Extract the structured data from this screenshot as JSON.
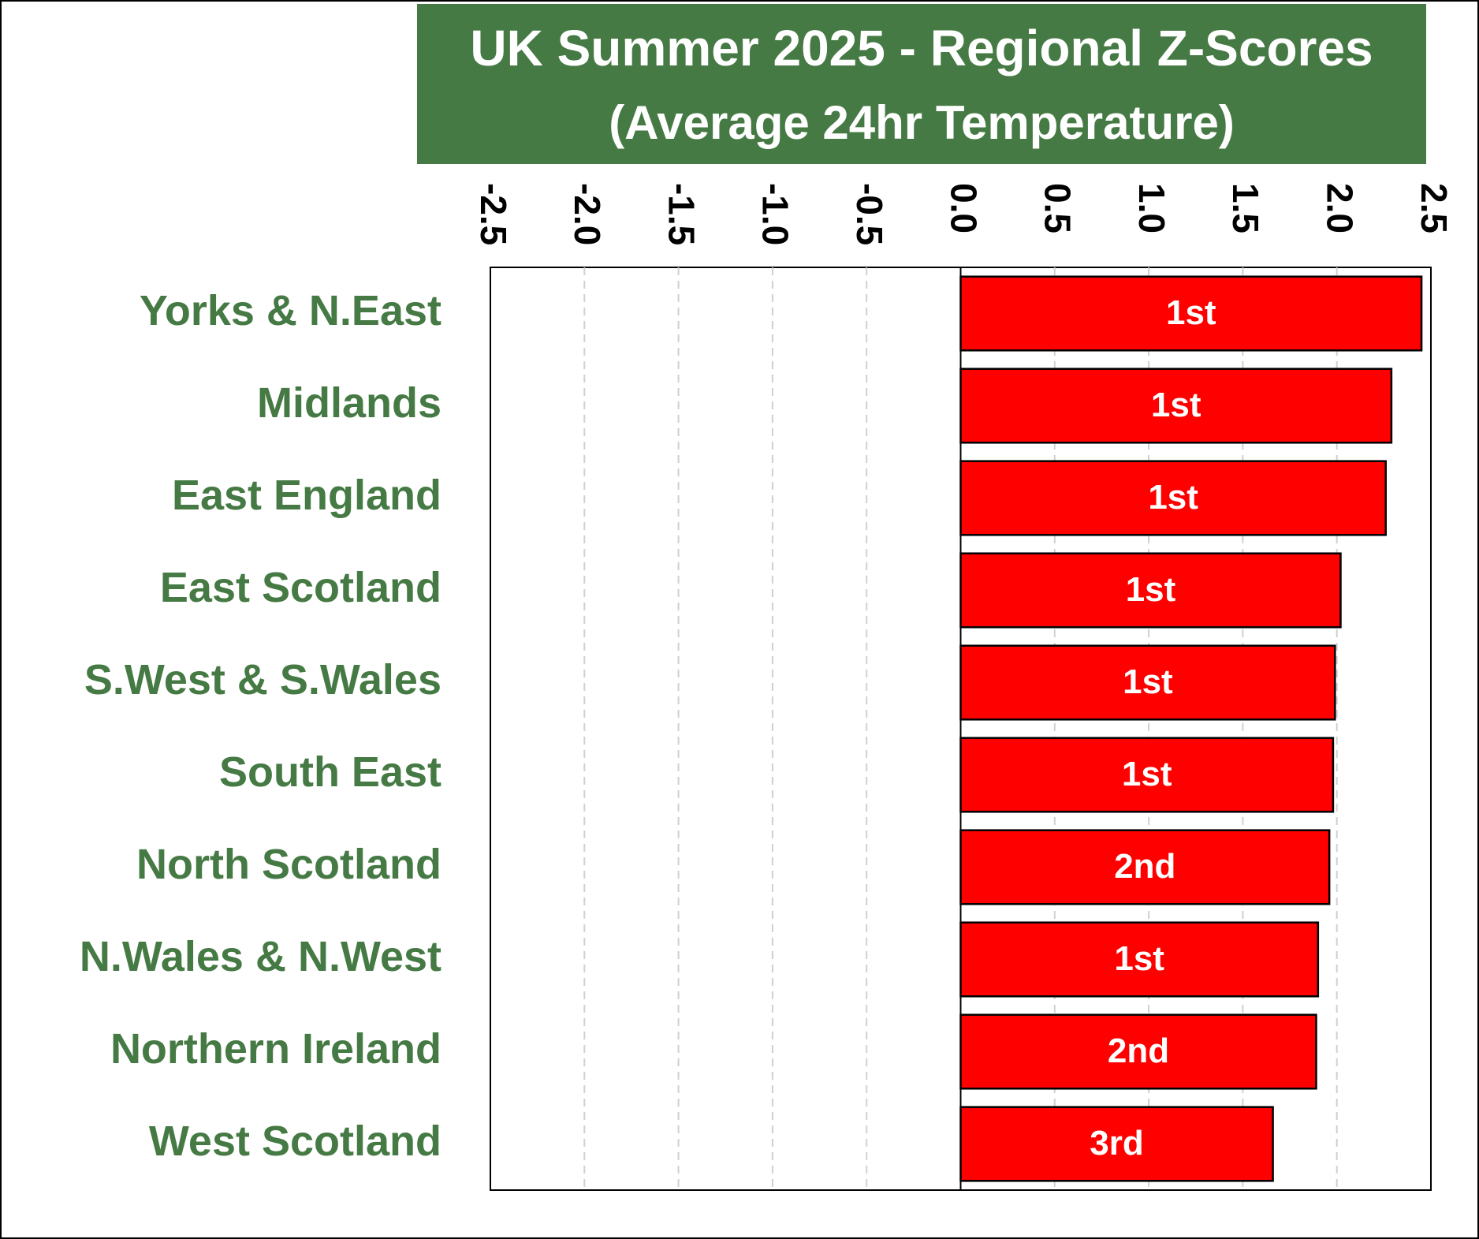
{
  "chart_data": {
    "type": "barh",
    "title": "UK Summer 2025 - Regional Z-Scores",
    "subtitle": "(Average 24hr Temperature)",
    "categories": [
      "Yorks & N.East",
      "Midlands",
      "East England",
      "East Scotland",
      "S.West & S.Wales",
      "South East",
      "North Scotland",
      "N.Wales & N.West",
      "Northern Ireland",
      "West Scotland"
    ],
    "values": [
      2.45,
      2.29,
      2.26,
      2.02,
      1.99,
      1.98,
      1.96,
      1.9,
      1.89,
      1.66
    ],
    "data_labels": [
      "1st",
      "1st",
      "1st",
      "1st",
      "1st",
      "1st",
      "2nd",
      "1st",
      "2nd",
      "3rd"
    ],
    "color": "#ff0000",
    "xlim": [
      -2.5,
      2.5
    ],
    "xticks": [
      -2.5,
      {
        "value": -2,
        "label": "-2.0"
      },
      -1.5,
      {
        "value": -1,
        "label": "-1.0"
      },
      -0.5,
      {
        "value": 0,
        "label": "0.0"
      },
      0.5,
      {
        "value": 1,
        "label": "1.0"
      },
      1.5,
      {
        "value": 2,
        "label": "2.0"
      },
      2.5
    ],
    "grid": true
  }
}
